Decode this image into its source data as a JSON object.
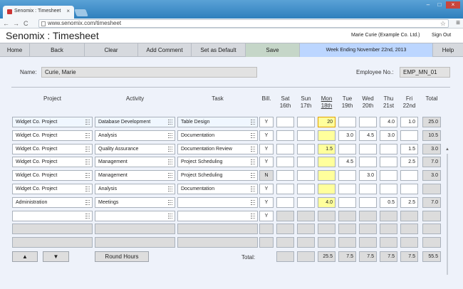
{
  "browser": {
    "tab_title": "Senomix : Timesheet",
    "tab_close": "×",
    "url": "www.senomix.com/timesheet",
    "back": "←",
    "forward": "→",
    "reload": "C",
    "star": "☆",
    "menu": "≡",
    "minimize": "–",
    "maximize": "□",
    "close": "×"
  },
  "app": {
    "title": "Senomix : Timesheet",
    "user": "Marie Curie  (Example Co. Ltd.)",
    "sign_out": "Sign Out"
  },
  "toolbar": {
    "home": "Home",
    "back": "Back",
    "clear": "Clear",
    "add_comment": "Add Comment",
    "set_default": "Set as Default",
    "save": "Save",
    "week_ending": "Week Ending November 22nd, 2013",
    "help": "Help"
  },
  "form": {
    "name_label": "Name:",
    "name_value": "Curie, Marie",
    "employee_label": "Employee No.:",
    "employee_value": "EMP_MN_01"
  },
  "columns": {
    "project": "Project",
    "activity": "Activity",
    "task": "Task",
    "bill": "Bill.",
    "total": "Total",
    "days": [
      {
        "name": "Sat",
        "date": "16th"
      },
      {
        "name": "Sun",
        "date": "17th"
      },
      {
        "name": "Mon",
        "date": "18th"
      },
      {
        "name": "Tue",
        "date": "19th"
      },
      {
        "name": "Wed",
        "date": "20th"
      },
      {
        "name": "Thu",
        "date": "21st"
      },
      {
        "name": "Fri",
        "date": "22nd"
      }
    ]
  },
  "rows": [
    {
      "project": "Widget Co. Project",
      "activity": "Database Development",
      "task": "Table Design",
      "bill": "Y",
      "hours": [
        "",
        "",
        "20",
        "",
        "",
        "4.0",
        "1.0"
      ],
      "total": "25.0"
    },
    {
      "project": "Widget Co. Project",
      "activity": "Analysis",
      "task": "Documentation",
      "bill": "Y",
      "hours": [
        "",
        "",
        "",
        "3.0",
        "4.5",
        "3.0",
        ""
      ],
      "total": "10.5"
    },
    {
      "project": "Widget Co. Project",
      "activity": "Quality Assurance",
      "task": "Documentation Review",
      "bill": "Y",
      "hours": [
        "",
        "",
        "1.5",
        "",
        "",
        "",
        "1.5"
      ],
      "total": "3.0"
    },
    {
      "project": "Widget Co. Project",
      "activity": "Management",
      "task": "Project Scheduling",
      "bill": "Y",
      "hours": [
        "",
        "",
        "",
        "4.5",
        "",
        "",
        "2.5"
      ],
      "total": "7.0"
    },
    {
      "project": "Widget Co. Project",
      "activity": "Management",
      "task": "Project Scheduling",
      "bill": "N",
      "hours": [
        "",
        "",
        "",
        "",
        "3.0",
        "",
        ""
      ],
      "total": "3.0"
    },
    {
      "project": "Widget Co. Project",
      "activity": "Analysis",
      "task": "Documentation",
      "bill": "Y",
      "hours": [
        "",
        "",
        "",
        "",
        "",
        "",
        ""
      ],
      "total": ""
    },
    {
      "project": "Administration",
      "activity": "Meetings",
      "task": "",
      "bill": "Y",
      "hours": [
        "",
        "",
        "4.0",
        "",
        "",
        "0.5",
        "2.5"
      ],
      "total": "7.0"
    },
    {
      "project": "",
      "activity": "",
      "task": "",
      "bill": "Y",
      "hours": [
        "",
        "",
        "",
        "",
        "",
        "",
        ""
      ],
      "total": ""
    }
  ],
  "footer": {
    "up": "▲",
    "down": "▼",
    "round_hours": "Round Hours",
    "total_label": "Total:",
    "totals": [
      "",
      "",
      "25.5",
      "7.5",
      "7.5",
      "7.5",
      "7.5"
    ],
    "grand_total": "55.5"
  }
}
